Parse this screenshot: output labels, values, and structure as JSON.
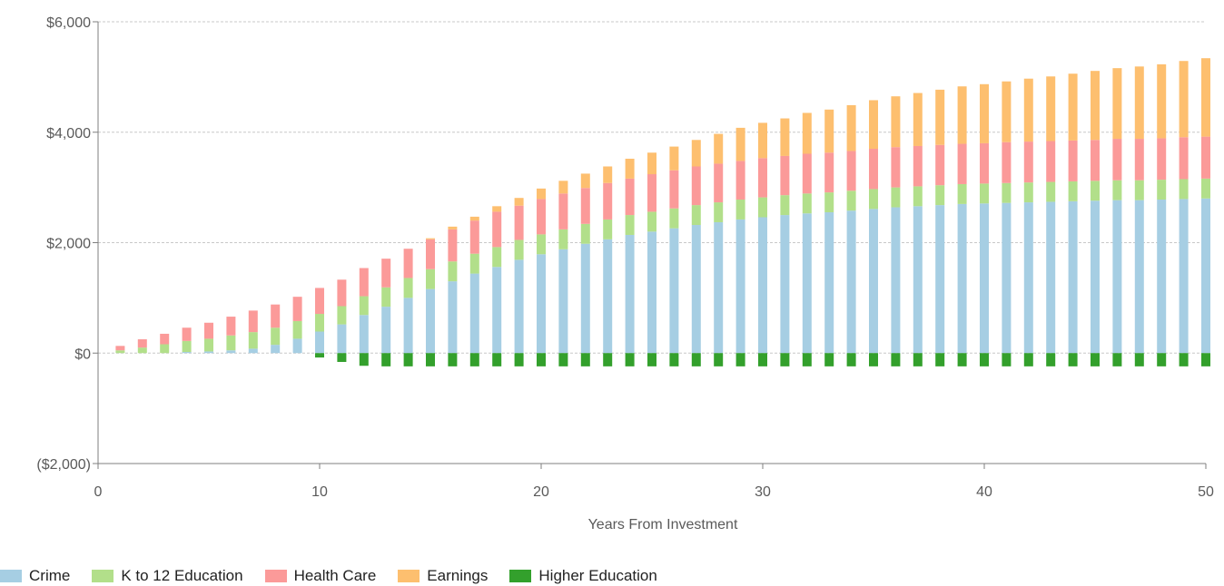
{
  "chart_data": {
    "type": "bar",
    "stacked": true,
    "title": "",
    "xlabel": "Years From Investment",
    "ylabel": "",
    "x": [
      1,
      2,
      3,
      4,
      5,
      6,
      7,
      8,
      9,
      10,
      11,
      12,
      13,
      14,
      15,
      16,
      17,
      18,
      19,
      20,
      21,
      22,
      23,
      24,
      25,
      26,
      27,
      28,
      29,
      30,
      31,
      32,
      33,
      34,
      35,
      36,
      37,
      38,
      39,
      40,
      41,
      42,
      43,
      44,
      45,
      46,
      47,
      48,
      49,
      50
    ],
    "xlim": [
      0,
      50
    ],
    "xticks": [
      "0",
      "10",
      "20",
      "30",
      "40",
      "50"
    ],
    "xtick_values": [
      0,
      10,
      20,
      30,
      40,
      50
    ],
    "ylim": [
      -2000,
      6000
    ],
    "yticks": [
      "($2,000)",
      "$0",
      "$2,000",
      "$4,000",
      "$6,000"
    ],
    "ytick_values": [
      -2000,
      0,
      2000,
      4000,
      6000
    ],
    "grid": true,
    "legend_position": "bottom-left",
    "series": [
      {
        "name": "Crime",
        "color": "#a6cee3",
        "values": [
          0,
          0,
          0,
          20,
          30,
          50,
          80,
          150,
          260,
          390,
          520,
          690,
          840,
          1000,
          1160,
          1300,
          1440,
          1560,
          1690,
          1790,
          1880,
          1980,
          2060,
          2140,
          2200,
          2260,
          2320,
          2370,
          2420,
          2460,
          2500,
          2530,
          2550,
          2580,
          2610,
          2640,
          2660,
          2680,
          2700,
          2710,
          2720,
          2730,
          2740,
          2750,
          2760,
          2770,
          2770,
          2780,
          2790,
          2800
        ]
      },
      {
        "name": "K to 12 Education",
        "color": "#b2df8a",
        "values": [
          50,
          100,
          160,
          200,
          230,
          270,
          300,
          310,
          320,
          320,
          330,
          340,
          350,
          360,
          360,
          360,
          360,
          360,
          360,
          360,
          360,
          360,
          360,
          360,
          360,
          360,
          360,
          360,
          360,
          360,
          360,
          360,
          360,
          360,
          360,
          360,
          360,
          360,
          360,
          360,
          360,
          360,
          360,
          360,
          360,
          360,
          360,
          360,
          360,
          360
        ]
      },
      {
        "name": "Health Care",
        "color": "#fb9a99",
        "values": [
          80,
          150,
          190,
          240,
          290,
          340,
          390,
          420,
          440,
          470,
          480,
          510,
          520,
          530,
          540,
          580,
          600,
          640,
          620,
          640,
          650,
          650,
          660,
          660,
          680,
          690,
          700,
          700,
          700,
          710,
          710,
          720,
          720,
          720,
          730,
          730,
          730,
          730,
          730,
          730,
          740,
          740,
          740,
          740,
          740,
          750,
          750,
          750,
          760,
          760
        ]
      },
      {
        "name": "Earnings",
        "color": "#fdbf6f",
        "values": [
          0,
          0,
          0,
          0,
          0,
          0,
          0,
          0,
          0,
          0,
          0,
          0,
          0,
          0,
          20,
          50,
          70,
          100,
          140,
          190,
          230,
          260,
          300,
          360,
          390,
          430,
          480,
          540,
          600,
          640,
          680,
          740,
          780,
          830,
          880,
          920,
          960,
          1000,
          1040,
          1070,
          1100,
          1140,
          1170,
          1210,
          1250,
          1280,
          1310,
          1340,
          1380,
          1420
        ]
      },
      {
        "name": "Higher Education",
        "color": "#33a02c",
        "values": [
          0,
          0,
          0,
          0,
          0,
          0,
          0,
          0,
          0,
          -80,
          -160,
          -230,
          -240,
          -240,
          -240,
          -240,
          -240,
          -240,
          -240,
          -240,
          -240,
          -240,
          -240,
          -240,
          -240,
          -240,
          -240,
          -240,
          -240,
          -240,
          -240,
          -240,
          -240,
          -240,
          -240,
          -240,
          -240,
          -240,
          -240,
          -240,
          -240,
          -240,
          -240,
          -240,
          -240,
          -240,
          -240,
          -240,
          -240,
          -240
        ]
      }
    ]
  }
}
